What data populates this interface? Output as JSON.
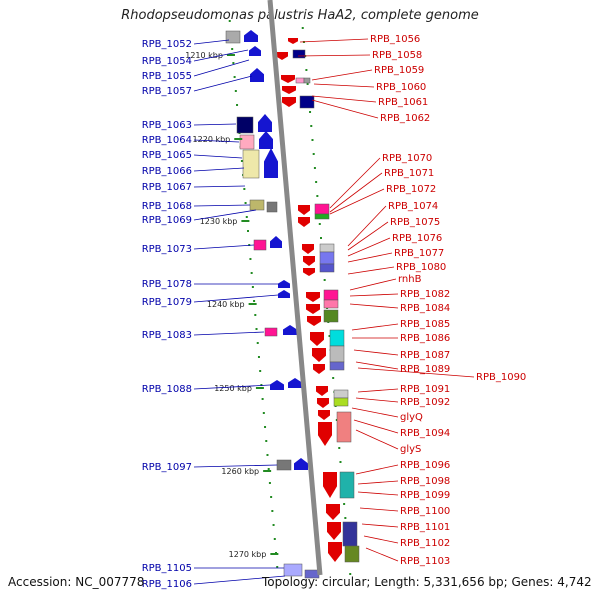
{
  "title": "Rhodopseudomonas palustris HaA2, complete genome",
  "footer": {
    "accession": "Accession: NC_007778",
    "summary": "Topology: circular; Length: 5,331,656 bp; Genes: 4,742"
  },
  "colors": {
    "left_label": "#0000aa",
    "right_label": "#cc0000",
    "backbone": "#888888",
    "tick": "#228b22"
  },
  "scale_ticks": [
    "1210 kbp",
    "1220 kbp",
    "1230 kbp",
    "1240 kbp",
    "1250 kbp",
    "1260 kbp",
    "1270 kbp"
  ],
  "left_labels": [
    "RPB_1052",
    "RPB_1054",
    "RPB_1055",
    "RPB_1057",
    "RPB_1063",
    "RPB_1064",
    "RPB_1065",
    "RPB_1066",
    "RPB_1067",
    "RPB_1068",
    "RPB_1069",
    "RPB_1073",
    "RPB_1078",
    "RPB_1079",
    "RPB_1083",
    "RPB_1088",
    "RPB_1097",
    "RPB_1105",
    "RPB_1106"
  ],
  "right_labels": [
    "RPB_1056",
    "RPB_1058",
    "RPB_1059",
    "RPB_1060",
    "RPB_1061",
    "RPB_1062",
    "RPB_1070",
    "RPB_1071",
    "RPB_1072",
    "RPB_1074",
    "RPB_1075",
    "RPB_1076",
    "RPB_1077",
    "RPB_1080",
    "rnhB",
    "RPB_1082",
    "RPB_1084",
    "RPB_1085",
    "RPB_1086",
    "RPB_1087",
    "RPB_1089",
    "RPB_1090",
    "RPB_1091",
    "RPB_1092",
    "glyQ",
    "RPB_1094",
    "glyS",
    "RPB_1096",
    "RPB_1098",
    "RPB_1099",
    "RPB_1100",
    "RPB_1101",
    "RPB_1102",
    "RPB_1103"
  ]
}
